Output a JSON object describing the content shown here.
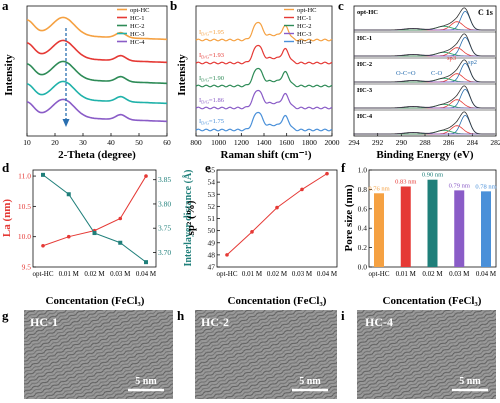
{
  "panels": {
    "a": {
      "letter": "a",
      "xlabel": "2-Theta (degree)",
      "ylabel": "Intensity",
      "xticks": [
        10,
        20,
        30,
        40,
        50,
        60
      ],
      "xlim": [
        10,
        60
      ]
    },
    "b": {
      "letter": "b",
      "xlabel": "Raman shift (cm⁻¹)",
      "ylabel": "Intensity",
      "xticks": [
        800,
        1000,
        1200,
        1400,
        1600,
        1800,
        2000
      ],
      "xlim": [
        800,
        2000
      ]
    },
    "c": {
      "letter": "c",
      "xlabel": "Binding Energy (eV)",
      "title": "C 1s",
      "xticks": [
        294,
        292,
        290,
        288,
        286,
        284,
        282
      ],
      "xlim": [
        294,
        282
      ],
      "peak_labels": {
        "coc": "O-C=O",
        "co": "C-O",
        "sp3": "sp3",
        "sp2": "sp2"
      }
    },
    "d": {
      "letter": "d",
      "xlabel": "Concentation (FeCl₃)",
      "ylabel": "La (nm)",
      "ylabel_right": "Interlayer distance (Å)",
      "yticks": [
        "9.5",
        "10.0",
        "10.5",
        "11.0"
      ],
      "yticks_right": [
        "3.70",
        "3.75",
        "3.80",
        "3.85"
      ]
    },
    "e": {
      "letter": "e",
      "xlabel": "Concentation (FeCl₃)",
      "ylabel": "sp² (%)",
      "yticks": [
        "47",
        "48",
        "49",
        "50",
        "51",
        "52",
        "53",
        "54",
        "55"
      ]
    },
    "f": {
      "letter": "f",
      "xlabel": "Concentation (FeCl₃)",
      "ylabel": "Pore size (nm)",
      "yticks": [
        "0.0",
        "0.2",
        "0.4",
        "0.6",
        "0.8",
        "1.0"
      ]
    },
    "g": {
      "letter": "g",
      "label": "HC-1",
      "scale": "5 nm"
    },
    "h": {
      "letter": "h",
      "label": "HC-2",
      "scale": "5 nm"
    },
    "i": {
      "letter": "i",
      "label": "HC-4",
      "scale": "5 nm"
    }
  },
  "chart_data": [
    {
      "panel": "a",
      "type": "line",
      "series": [
        {
          "name": "opt-HC",
          "color": "#f5a142"
        },
        {
          "name": "HC-1",
          "color": "#e53935"
        },
        {
          "name": "HC-2",
          "color": "#2e8b57"
        },
        {
          "name": "HC-3",
          "color": "#20b2aa"
        },
        {
          "name": "HC-4",
          "color": "#8a5cc7"
        }
      ],
      "x": [
        10,
        60
      ],
      "annotation": "dashed arrow at 2θ ≈ 23°"
    },
    {
      "panel": "b",
      "type": "line",
      "series": [
        {
          "name": "opt-HC",
          "color": "#f5a142",
          "ratio": "1.95"
        },
        {
          "name": "HC-1",
          "color": "#e53935",
          "ratio": "1.93"
        },
        {
          "name": "HC-2",
          "color": "#2e8b57",
          "ratio": "1.90"
        },
        {
          "name": "HC-3",
          "color": "#8a5cc7",
          "ratio": "1.86"
        },
        {
          "name": "HC-4",
          "color": "#4a90d9",
          "ratio": "1.75"
        }
      ],
      "ratio_label": "I",
      "ratio_sub": "D/G",
      "x": [
        800,
        2000
      ]
    },
    {
      "panel": "c",
      "type": "line",
      "samples": [
        "opt-HC",
        "HC-1",
        "HC-2",
        "HC-3",
        "HC-4"
      ],
      "x": [
        294,
        282
      ]
    },
    {
      "panel": "d",
      "type": "line",
      "categories": [
        "opt-HC",
        "0.01 M",
        "0.02 M",
        "0.03 M",
        "0.04 M"
      ],
      "series": [
        {
          "name": "La (nm)",
          "axis": "left",
          "color": "#e53935",
          "values": [
            9.85,
            10.0,
            10.1,
            10.3,
            11.0
          ]
        },
        {
          "name": "Interlayer distance (Å)",
          "axis": "right",
          "color": "#1f7f7a",
          "values": [
            3.86,
            3.82,
            3.74,
            3.72,
            3.68
          ]
        }
      ],
      "ylim": [
        9.5,
        11.1
      ],
      "ylim_right": [
        3.67,
        3.87
      ]
    },
    {
      "panel": "e",
      "type": "line",
      "categories": [
        "opt-HC",
        "0.01 M",
        "0.02 M",
        "0.03 M",
        "0.04 M"
      ],
      "series": [
        {
          "name": "sp² (%)",
          "color": "#e53935",
          "values": [
            48.0,
            49.9,
            51.9,
            53.4,
            54.7
          ]
        }
      ],
      "ylim": [
        47,
        55
      ]
    },
    {
      "panel": "f",
      "type": "bar",
      "categories": [
        "opt-HC",
        "0.01 M",
        "0.02 M",
        "0.03 M",
        "0.04 M"
      ],
      "values": [
        0.76,
        0.83,
        0.9,
        0.79,
        0.78
      ],
      "labels": [
        "0.76 nm",
        "0.83 nm",
        "0.90 nm",
        "0.79 nm",
        "0.78 nm"
      ],
      "colors": [
        "#f5a142",
        "#e53935",
        "#1f7f7a",
        "#8a5cc7",
        "#4a90d9"
      ],
      "ylim": [
        0,
        1.0
      ]
    }
  ]
}
